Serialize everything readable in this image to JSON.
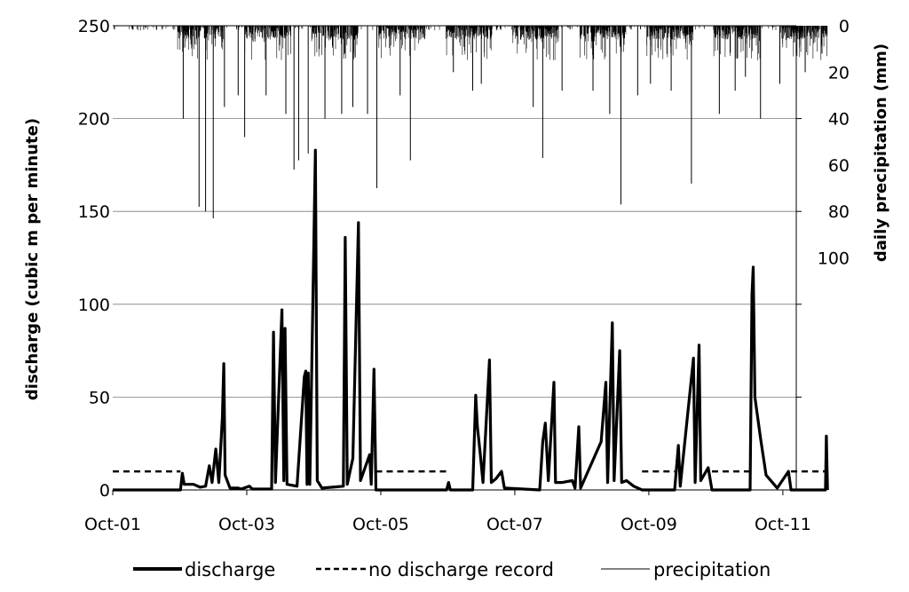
{
  "chart_data": {
    "type": "line",
    "title": "",
    "xlabel": "",
    "ylabel": "discharge (cubic m per minute)",
    "y2label": "daily precipitation (mm)",
    "ylim": [
      0,
      250
    ],
    "y2lim": [
      0,
      200
    ],
    "y2_inverted": true,
    "grid": true,
    "legend_position": "bottom",
    "x_ticks": [
      "Oct-01",
      "Oct-03",
      "Oct-05",
      "Oct-07",
      "Oct-09",
      "Oct-11"
    ],
    "x_tick_years": [
      2001,
      2003,
      2005,
      2007,
      2009,
      2011
    ],
    "x_range_years": [
      2001.75,
      2011.95
    ],
    "y_ticks": [
      0,
      50,
      100,
      150,
      200,
      250
    ],
    "y2_ticks": [
      0,
      20,
      40,
      60,
      80,
      100
    ],
    "legend": [
      "discharge",
      "no discharge record",
      "precipitation"
    ],
    "series": [
      {
        "name": "discharge",
        "style": "thick-solid",
        "points": [
          [
            "2001-10-01",
            0
          ],
          [
            "2002-10-05",
            0
          ],
          [
            "2002-10-15",
            9
          ],
          [
            "2002-10-25",
            3
          ],
          [
            "2002-12-15",
            3
          ],
          [
            "2003-01-20",
            1.5
          ],
          [
            "2003-02-20",
            2
          ],
          [
            "2003-03-10",
            13
          ],
          [
            "2003-03-25",
            4
          ],
          [
            "2003-04-15",
            22
          ],
          [
            "2003-05-01",
            4
          ],
          [
            "2003-05-20",
            39
          ],
          [
            "2003-05-28",
            68
          ],
          [
            "2003-06-05",
            8
          ],
          [
            "2003-07-01",
            1
          ],
          [
            "2003-08-15",
            1
          ],
          [
            "2003-09-01",
            0.5
          ],
          [
            "2003-10-15",
            2
          ],
          [
            "2003-11-01",
            0.5
          ],
          [
            "2004-02-15",
            0.5
          ],
          [
            "2004-02-25",
            85
          ],
          [
            "2004-03-05",
            4
          ],
          [
            "2004-04-10",
            97
          ],
          [
            "2004-04-20",
            5
          ],
          [
            "2004-04-27",
            87
          ],
          [
            "2004-05-07",
            3
          ],
          [
            "2004-07-01",
            2
          ],
          [
            "2004-08-10",
            61
          ],
          [
            "2004-08-18",
            64
          ],
          [
            "2004-08-25",
            3
          ],
          [
            "2004-09-01",
            63
          ],
          [
            "2004-09-10",
            3
          ],
          [
            "2004-10-10",
            183
          ],
          [
            "2004-10-20",
            5
          ],
          [
            "2004-11-15",
            1
          ],
          [
            "2005-03-10",
            2
          ],
          [
            "2005-03-20",
            136
          ],
          [
            "2005-04-01",
            3
          ],
          [
            "2005-05-01",
            17
          ],
          [
            "2005-06-01",
            144
          ],
          [
            "2005-06-12",
            5
          ],
          [
            "2005-08-01",
            19
          ],
          [
            "2005-08-10",
            3
          ],
          [
            "2005-08-25",
            65
          ],
          [
            "2005-09-05",
            0
          ],
          [
            "2006-09-25",
            0
          ],
          [
            "2006-10-05",
            4
          ],
          [
            "2006-10-15",
            0
          ],
          [
            "2007-02-15",
            0
          ],
          [
            "2007-03-01",
            51
          ],
          [
            "2007-03-10",
            34
          ],
          [
            "2007-03-25",
            20
          ],
          [
            "2007-04-10",
            4
          ],
          [
            "2007-05-15",
            70
          ],
          [
            "2007-05-25",
            4
          ],
          [
            "2007-06-20",
            6
          ],
          [
            "2007-07-20",
            10
          ],
          [
            "2007-08-05",
            1
          ],
          [
            "2008-02-15",
            0
          ],
          [
            "2008-03-01",
            26
          ],
          [
            "2008-03-15",
            36
          ],
          [
            "2008-04-01",
            5
          ],
          [
            "2008-05-01",
            58
          ],
          [
            "2008-05-10",
            4
          ],
          [
            "2008-06-15",
            4
          ],
          [
            "2008-08-10",
            5
          ],
          [
            "2008-08-25",
            1
          ],
          [
            "2008-09-15",
            34
          ],
          [
            "2008-09-25",
            1
          ],
          [
            "2009-01-15",
            26
          ],
          [
            "2009-02-10",
            58
          ],
          [
            "2009-02-20",
            4
          ],
          [
            "2009-03-15",
            90
          ],
          [
            "2009-03-25",
            5
          ],
          [
            "2009-04-25",
            75
          ],
          [
            "2009-05-05",
            4
          ],
          [
            "2009-06-01",
            5
          ],
          [
            "2009-07-10",
            2
          ],
          [
            "2009-08-25",
            0
          ],
          [
            "2010-02-20",
            0
          ],
          [
            "2010-03-10",
            24
          ],
          [
            "2010-03-20",
            2
          ],
          [
            "2010-06-01",
            71
          ],
          [
            "2010-06-10",
            4
          ],
          [
            "2010-07-01",
            78
          ],
          [
            "2010-07-10",
            5
          ],
          [
            "2010-08-20",
            12
          ],
          [
            "2010-09-10",
            0
          ],
          [
            "2011-04-05",
            0
          ],
          [
            "2011-04-15",
            105
          ],
          [
            "2011-04-22",
            120
          ],
          [
            "2011-05-01",
            50
          ],
          [
            "2011-06-01",
            28
          ],
          [
            "2011-07-01",
            8
          ],
          [
            "2011-09-01",
            1
          ],
          [
            "2011-11-01",
            10
          ],
          [
            "2011-11-15",
            0
          ],
          [
            "2012-05-20",
            0
          ],
          [
            "2012-05-25",
            29
          ],
          [
            "2012-06-01",
            0
          ]
        ]
      },
      {
        "name": "no discharge record",
        "style": "dashed",
        "value": 10,
        "intervals": [
          [
            "2001-10-01",
            "2002-10-05"
          ],
          [
            "2005-09-05",
            "2006-09-25"
          ],
          [
            "2009-08-25",
            "2010-02-20"
          ],
          [
            "2010-09-10",
            "2011-04-05"
          ],
          [
            "2011-11-15",
            "2012-05-20"
          ]
        ]
      },
      {
        "name": "precipitation",
        "style": "thin-bars-from-top",
        "note": "daily precipitation (mm) hanging down from the top axis, wet season clusters each year",
        "wet_seasons": [
          [
            "2002-09-20",
            "2003-05-30"
          ],
          [
            "2003-09-20",
            "2004-05-30"
          ],
          [
            "2004-09-20",
            "2005-05-30"
          ],
          [
            "2005-09-20",
            "2006-05-30"
          ],
          [
            "2006-09-20",
            "2007-05-30"
          ],
          [
            "2007-09-20",
            "2008-05-30"
          ],
          [
            "2008-09-20",
            "2009-05-30"
          ],
          [
            "2009-09-20",
            "2010-05-30"
          ],
          [
            "2010-09-20",
            "2011-05-30"
          ],
          [
            "2011-09-20",
            "2012-05-30"
          ]
        ],
        "major_events": [
          [
            "2002-10-20",
            40
          ],
          [
            "2003-01-15",
            78
          ],
          [
            "2003-02-20",
            80
          ],
          [
            "2003-04-01",
            83
          ],
          [
            "2003-06-01",
            35
          ],
          [
            "2003-08-15",
            30
          ],
          [
            "2003-09-20",
            48
          ],
          [
            "2004-01-15",
            30
          ],
          [
            "2004-05-01",
            38
          ],
          [
            "2004-06-15",
            62
          ],
          [
            "2004-07-10",
            58
          ],
          [
            "2004-09-01",
            55
          ],
          [
            "2004-12-01",
            40
          ],
          [
            "2005-03-01",
            38
          ],
          [
            "2005-05-01",
            35
          ],
          [
            "2005-07-20",
            38
          ],
          [
            "2005-09-10",
            70
          ],
          [
            "2006-01-15",
            30
          ],
          [
            "2006-03-10",
            58
          ],
          [
            "2006-11-01",
            20
          ],
          [
            "2007-02-15",
            28
          ],
          [
            "2007-04-01",
            25
          ],
          [
            "2008-01-10",
            35
          ],
          [
            "2008-03-01",
            57
          ],
          [
            "2008-06-15",
            28
          ],
          [
            "2008-12-01",
            28
          ],
          [
            "2009-03-01",
            38
          ],
          [
            "2009-05-01",
            77
          ],
          [
            "2009-08-01",
            30
          ],
          [
            "2009-10-10",
            25
          ],
          [
            "2010-02-01",
            28
          ],
          [
            "2010-05-20",
            68
          ],
          [
            "2010-10-20",
            38
          ],
          [
            "2011-01-15",
            28
          ],
          [
            "2011-03-10",
            22
          ],
          [
            "2011-06-01",
            40
          ],
          [
            "2011-09-15",
            25
          ],
          [
            "2012-02-01",
            20
          ],
          [
            "2012-05-01",
            12
          ]
        ]
      }
    ]
  }
}
